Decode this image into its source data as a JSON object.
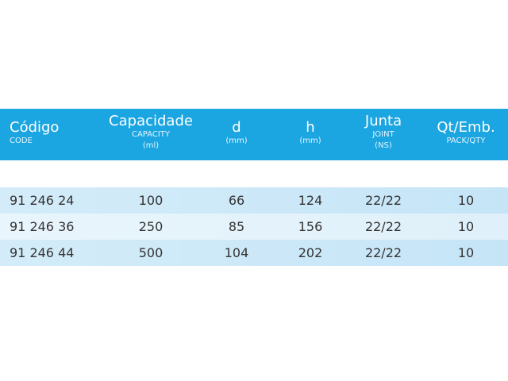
{
  "header": {
    "columns": [
      {
        "main": "Código",
        "sub": "CODE",
        "unit": ""
      },
      {
        "main": "Capacidade",
        "sub": "CAPACITY",
        "unit": "(ml)"
      },
      {
        "main": "d",
        "sub": "",
        "unit": "(mm)"
      },
      {
        "main": "h",
        "sub": "",
        "unit": "(mm)"
      },
      {
        "main": "Junta",
        "sub": "JOINT",
        "unit": "(NS)"
      },
      {
        "main": "Qt/Emb.",
        "sub": "PACK/QTY",
        "unit": ""
      }
    ],
    "color": "#1ba5e1"
  },
  "rows": [
    [
      "91 246 24",
      "100",
      "66",
      "124",
      "22/22",
      "10"
    ],
    [
      "91 246 36",
      "250",
      "85",
      "156",
      "22/22",
      "10"
    ],
    [
      "91 246 44",
      "500",
      "104",
      "202",
      "22/22",
      "10"
    ]
  ]
}
